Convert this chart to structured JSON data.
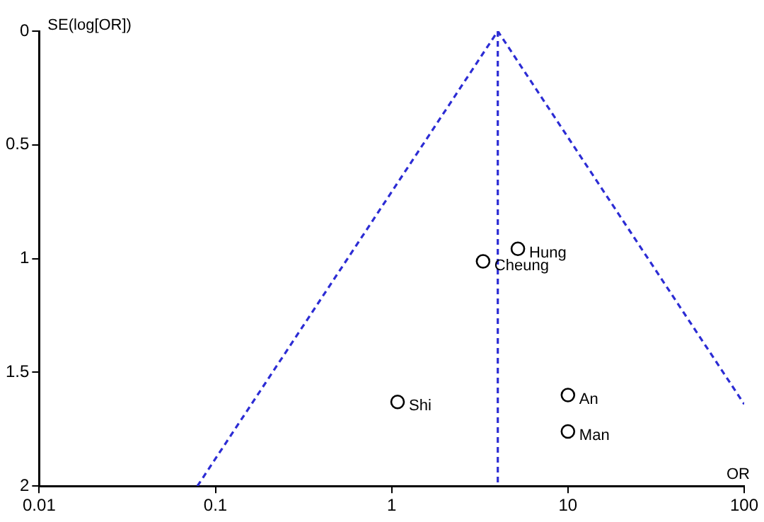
{
  "chart_data": {
    "type": "scatter",
    "xlabel": "OR",
    "ylabel": "SE(log[OR])",
    "log": "x",
    "xlim": [
      0.01,
      100
    ],
    "xticks": [
      0.01,
      0.1,
      1,
      10,
      100
    ],
    "ylim": [
      2,
      0
    ],
    "yticks": [
      0,
      0.5,
      1,
      1.5,
      2
    ],
    "grid": false,
    "legend": false,
    "series": [
      {
        "type": "scatter",
        "color": "#000000",
        "marker": "circle",
        "x": [
          5.2,
          3.3,
          1.08,
          10,
          10
        ],
        "values": [
          0.957,
          1.012,
          1.63,
          1.6,
          1.76
        ]
      },
      {
        "type": "line",
        "color": "#2c2cd4",
        "line_style": "dashed",
        "marker": "none",
        "x": [
          0.079,
          4.0,
          100
        ],
        "values": [
          2,
          0,
          1.64
        ]
      },
      {
        "type": "line",
        "color": "#2c2cd4",
        "line_style": "dashed",
        "marker": "none",
        "x": [
          4.0,
          4.0
        ],
        "values": [
          0,
          2
        ]
      }
    ],
    "annotations": [
      {
        "text": "Hung",
        "x": 5.2,
        "y": 0.957
      },
      {
        "text": "Cheung",
        "x": 3.3,
        "y": 1.012
      },
      {
        "text": "Shi",
        "x": 1.08,
        "y": 1.63
      },
      {
        "text": "An",
        "x": 10,
        "y": 1.6
      },
      {
        "text": "Man",
        "x": 10,
        "y": 1.76
      }
    ]
  }
}
